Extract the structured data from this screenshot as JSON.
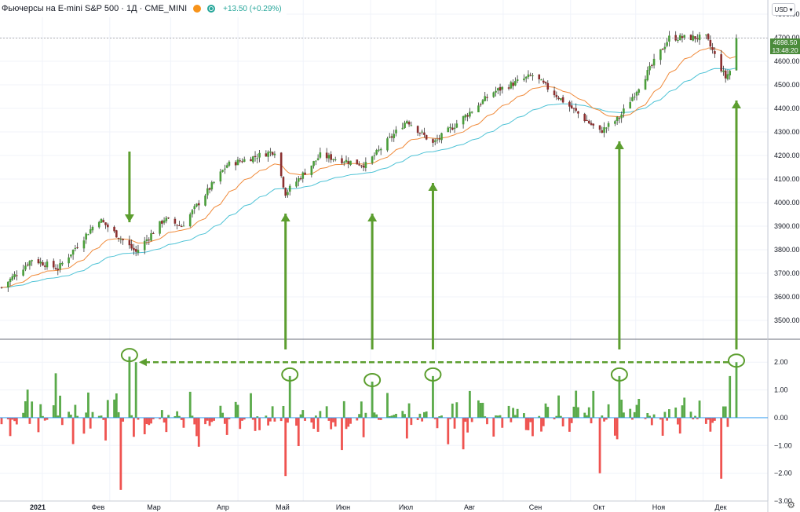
{
  "header": {
    "title": "Фьючерсы на E-mini S&P 500 · 1Д · CME_MINI",
    "change": "+13.50 (+0.29%)",
    "currency": "USD"
  },
  "last_price": {
    "value": "4698.50",
    "countdown": "13:48:20"
  },
  "colors": {
    "up": "#4a9d3a",
    "down": "#8b2f2f",
    "hist_up": "#5aaa4a",
    "hist_down": "#ef5350",
    "ema_fast": "#f08a3a",
    "ema_slow": "#4fc3d6",
    "annotation": "#5c9e2f"
  },
  "chart_data": [
    {
      "type": "candlestick",
      "title": "",
      "ylim": [
        3460,
        4820
      ],
      "y_ticks": [
        "4800.00",
        "4700.00",
        "4600.00",
        "4500.00",
        "4400.00",
        "4300.00",
        "4200.00",
        "4100.00",
        "4000.00",
        "3900.00",
        "3800.00",
        "3700.00",
        "3600.00",
        "3500.00"
      ],
      "x_ticks": [
        "2021",
        "Фев",
        "Мар",
        "Апр",
        "Май",
        "Июн",
        "Июл",
        "Авг",
        "Сен",
        "Окт",
        "Ноя",
        "Дек"
      ],
      "series": [
        {
          "name": "",
          "kind": "ohlc_daily",
          "anchors": [
            {
              "date": "2021-01-01",
              "close": 3640
            },
            {
              "date": "2021-01-15",
              "close": 3760
            },
            {
              "date": "2021-01-27",
              "close": 3720
            },
            {
              "date": "2021-02-15",
              "close": 3930
            },
            {
              "date": "2021-03-04",
              "close": 3790
            },
            {
              "date": "2021-03-17",
              "close": 3930
            },
            {
              "date": "2021-03-25",
              "close": 3900
            },
            {
              "date": "2021-04-15",
              "close": 4160
            },
            {
              "date": "2021-05-07",
              "close": 4220
            },
            {
              "date": "2021-05-12",
              "close": 4040
            },
            {
              "date": "2021-05-28",
              "close": 4200
            },
            {
              "date": "2021-06-18",
              "close": 4160
            },
            {
              "date": "2021-07-07",
              "close": 4350
            },
            {
              "date": "2021-07-19",
              "close": 4250
            },
            {
              "date": "2021-08-16",
              "close": 4470
            },
            {
              "date": "2021-09-03",
              "close": 4540
            },
            {
              "date": "2021-10-04",
              "close": 4300
            },
            {
              "date": "2021-10-13",
              "close": 4360
            },
            {
              "date": "2021-11-05",
              "close": 4700
            },
            {
              "date": "2021-11-22",
              "close": 4700
            },
            {
              "date": "2021-12-01",
              "close": 4530
            },
            {
              "date": "2021-12-03",
              "close": 4560
            },
            {
              "date": "2021-12-06",
              "close": 4698.5
            }
          ]
        },
        {
          "name": "",
          "kind": "ema_fast"
        },
        {
          "name": "",
          "kind": "ema_slow"
        }
      ],
      "annotations": {
        "down_arrow_date": "2021-03-01",
        "up_arrow_dates": [
          "2021-05-12",
          "2021-06-21",
          "2021-07-19",
          "2021-10-13",
          "2021-12-06"
        ]
      }
    },
    {
      "type": "bar",
      "title": "",
      "ylim": [
        -3,
        2.6
      ],
      "y_ticks": [
        "2.00",
        "1.00",
        "0.00",
        "−1.00",
        "−2.00",
        "−3.00"
      ],
      "note_values": "oscillator histogram; notable spikes listed",
      "spikes": [
        {
          "date": "2021-01-26",
          "value": 1.6
        },
        {
          "date": "2021-02-25",
          "value": -2.6
        },
        {
          "date": "2021-03-01",
          "value": 2.2
        },
        {
          "date": "2021-03-04",
          "value": 2.0
        },
        {
          "date": "2021-05-12",
          "value": -2.1
        },
        {
          "date": "2021-05-14",
          "value": 1.5
        },
        {
          "date": "2021-06-21",
          "value": 1.3
        },
        {
          "date": "2021-07-19",
          "value": 1.5
        },
        {
          "date": "2021-10-04",
          "value": -2.0
        },
        {
          "date": "2021-10-13",
          "value": 1.5
        },
        {
          "date": "2021-11-29",
          "value": -2.2
        },
        {
          "date": "2021-12-03",
          "value": 1.5
        },
        {
          "date": "2021-12-06",
          "value": 2.0
        }
      ],
      "circled_dates": [
        "2021-03-01",
        "2021-05-14",
        "2021-06-21",
        "2021-07-19",
        "2021-10-13",
        "2021-12-06"
      ],
      "dashed_line_from": "2021-12-06",
      "dashed_line_to": "2021-03-01"
    }
  ]
}
